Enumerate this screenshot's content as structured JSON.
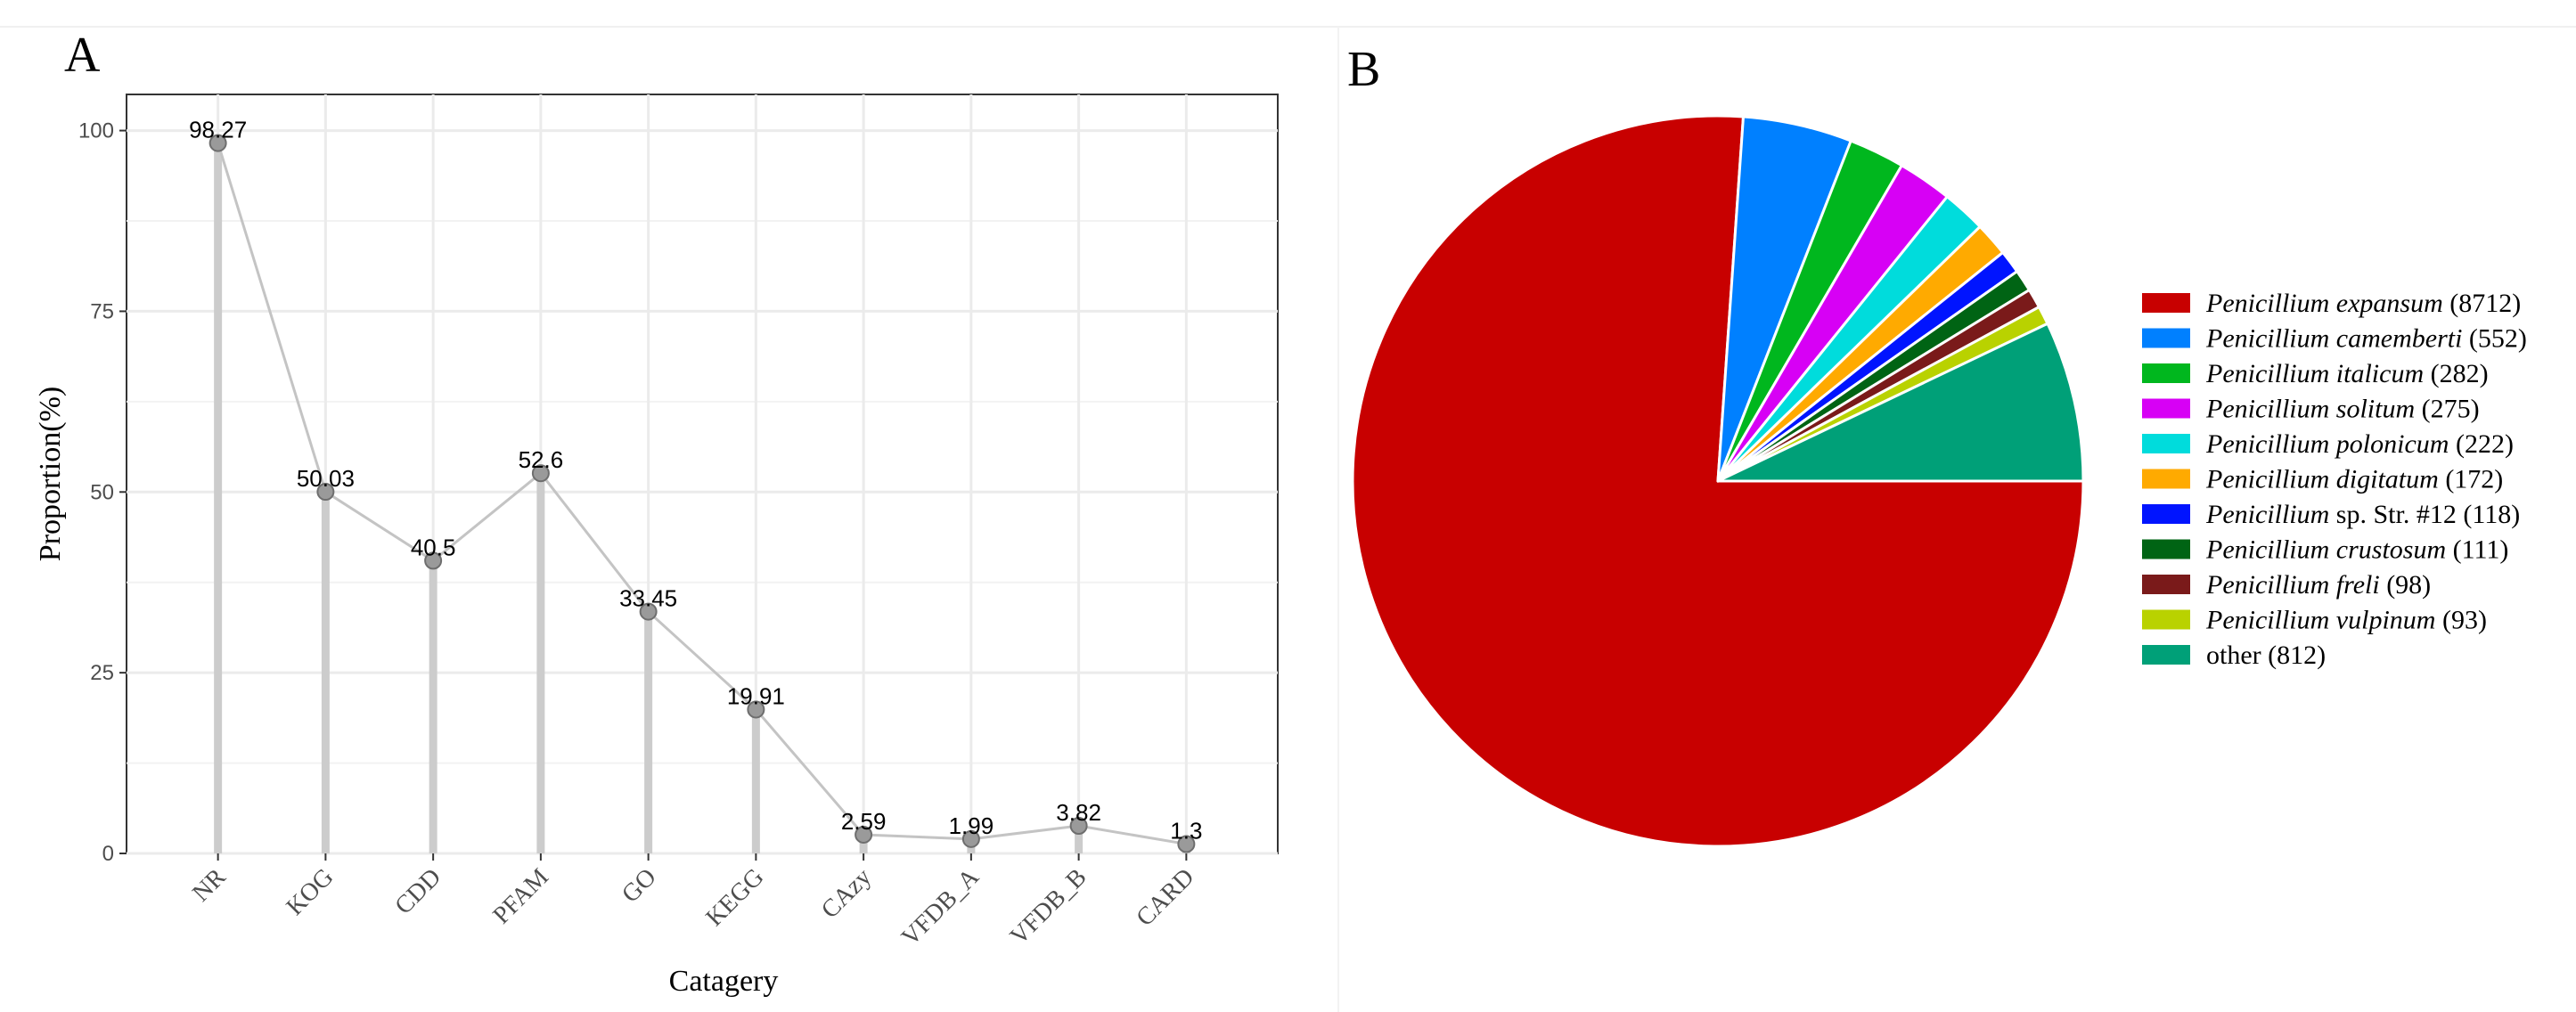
{
  "panel_a_letter": "A",
  "panel_b_letter": "B",
  "chart_data": [
    {
      "type": "line",
      "xlabel": "Catagery",
      "ylabel": "Proportion(%)",
      "ylim": [
        0,
        105
      ],
      "yticks": [
        "0",
        "25",
        "50",
        "75",
        "100"
      ],
      "grid": true,
      "categories": [
        "NR",
        "KOG",
        "CDD",
        "PFAM",
        "GO",
        "KEGG",
        "CAzy",
        "VFDB_A",
        "VFDB_B",
        "CARD"
      ],
      "values": [
        98.27,
        50.03,
        40.5,
        52.6,
        33.45,
        19.91,
        2.59,
        1.99,
        3.82,
        1.3
      ],
      "labels": [
        "98.27",
        "50.03",
        "40.5",
        "52.6",
        "33.45",
        "19.91",
        "2.59",
        "1.99",
        "3.82",
        "1.3"
      ]
    },
    {
      "type": "pie",
      "legend_position": "right",
      "slices": [
        {
          "name": "Penicillium expansum",
          "count": "(8712)",
          "value": 8712,
          "color": "#C80000"
        },
        {
          "name": "Penicillium camemberti",
          "count": "(552)",
          "value": 552,
          "color": "#0080FF"
        },
        {
          "name": "Penicillium italicum",
          "count": "(282)",
          "value": 282,
          "color": "#00B71E"
        },
        {
          "name": "Penicillium solitum",
          "count": "(275)",
          "value": 275,
          "color": "#D700F5"
        },
        {
          "name": "Penicillium polonicum",
          "count": "(222)",
          "value": 222,
          "color": "#00DCDC"
        },
        {
          "name": "Penicillium digitatum",
          "count": "(172)",
          "value": 172,
          "color": "#FFAA00"
        },
        {
          "name": "Penicillium",
          "name_suffix": " sp. Str. #12",
          "count": "(118)",
          "value": 118,
          "color": "#0014FF"
        },
        {
          "name": "Penicillium crustosum",
          "count": "(111)",
          "value": 111,
          "color": "#006414"
        },
        {
          "name": "Penicillium freli",
          "count": "(98)",
          "value": 98,
          "color": "#7A1A1A"
        },
        {
          "name": "Penicillium vulpinum",
          "count": "(93)",
          "value": 93,
          "color": "#B9D200"
        },
        {
          "name": "",
          "plain": "other",
          "count": "(812)",
          "value": 812,
          "color": "#00A078"
        }
      ]
    }
  ]
}
